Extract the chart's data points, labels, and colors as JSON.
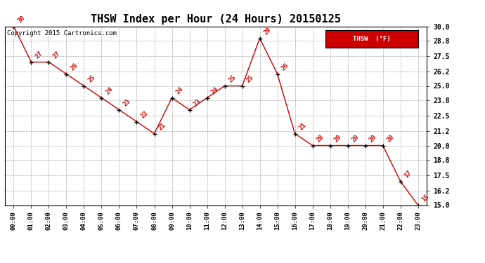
{
  "title": "THSW Index per Hour (24 Hours) 20150125",
  "copyright": "Copyright 2015 Cartronics.com",
  "legend_label": "THSW  (°F)",
  "hours": [
    "00:00",
    "01:00",
    "02:00",
    "03:00",
    "04:00",
    "05:00",
    "06:00",
    "07:00",
    "08:00",
    "09:00",
    "10:00",
    "11:00",
    "12:00",
    "13:00",
    "14:00",
    "15:00",
    "16:00",
    "17:00",
    "18:00",
    "19:00",
    "20:00",
    "21:00",
    "22:00",
    "23:00"
  ],
  "values": [
    30,
    27,
    27,
    26,
    25,
    24,
    23,
    22,
    21,
    24,
    23,
    24,
    25,
    25,
    29,
    26,
    21,
    20,
    20,
    20,
    20,
    20,
    17,
    15
  ],
  "ylim": [
    15.0,
    30.0
  ],
  "yticks": [
    15.0,
    16.2,
    17.5,
    18.8,
    20.0,
    21.2,
    22.5,
    23.8,
    25.0,
    26.2,
    27.5,
    28.8,
    30.0
  ],
  "line_color": "#cc0000",
  "marker_color": "#000000",
  "bg_color": "#ffffff",
  "grid_color": "#aaaaaa",
  "label_color": "#cc0000",
  "legend_bg": "#cc0000",
  "legend_text": "#ffffff",
  "title_fontsize": 11,
  "copyright_fontsize": 6.5
}
